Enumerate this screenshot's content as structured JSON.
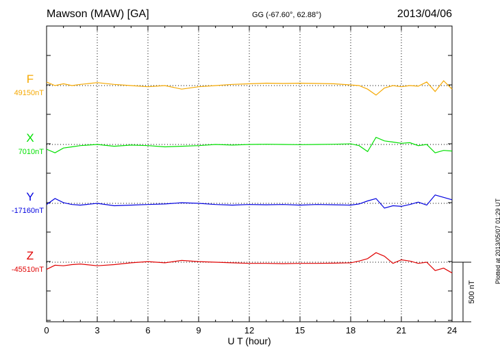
{
  "header": {
    "station": "Mawson (MAW)  [GA]",
    "coordinates": "GG (-67.60°,  62.88°)",
    "date": "2013/04/06"
  },
  "footer": {
    "plotted": "Plotted at 2013/05/07 01:29 UT"
  },
  "chart_data": {
    "type": "line",
    "xlabel": "U T (hour)",
    "xlim": [
      0,
      24
    ],
    "xticks": [
      "0",
      "3",
      "6",
      "9",
      "12",
      "15",
      "18",
      "21",
      "24"
    ],
    "scale_bar_label": "500 nT",
    "scale_bar_nT": 500,
    "series": [
      {
        "name": "F",
        "baseline_label": "49150nT",
        "color": "#f5a800",
        "baseline": 49150,
        "x": [
          0,
          0.5,
          1,
          1.5,
          2,
          3,
          4,
          5,
          6,
          7,
          8,
          9,
          10,
          11,
          12,
          13,
          14,
          15,
          16,
          17,
          18,
          18.5,
          19,
          19.5,
          20,
          20.5,
          21,
          21.5,
          22,
          22.5,
          23,
          23.5,
          24
        ],
        "values": [
          49180,
          49150,
          49165,
          49150,
          49160,
          49175,
          49160,
          49150,
          49140,
          49150,
          49120,
          49140,
          49150,
          49160,
          49165,
          49170,
          49168,
          49170,
          49168,
          49165,
          49155,
          49150,
          49120,
          49070,
          49130,
          49150,
          49140,
          49150,
          49145,
          49180,
          49100,
          49190,
          49120
        ]
      },
      {
        "name": "X",
        "baseline_label": "7010nT",
        "color": "#00e000",
        "baseline": 7010,
        "x": [
          0,
          0.5,
          1,
          1.5,
          2,
          3,
          4,
          5,
          6,
          7,
          8,
          9,
          10,
          11,
          12,
          13,
          14,
          15,
          16,
          17,
          18,
          18.5,
          19,
          19.5,
          20,
          20.5,
          21,
          21.5,
          22,
          22.5,
          23,
          23.5,
          24
        ],
        "values": [
          6970,
          6940,
          6980,
          6990,
          7000,
          7010,
          6995,
          7005,
          7000,
          6990,
          6995,
          7000,
          7010,
          7005,
          7010,
          7012,
          7010,
          7008,
          7010,
          7012,
          7015,
          7000,
          6950,
          7070,
          7040,
          7030,
          7020,
          7025,
          7000,
          7010,
          6940,
          6960,
          6955
        ]
      },
      {
        "name": "Y",
        "baseline_label": "-17160nT",
        "color": "#0000e0",
        "baseline": -17160,
        "x": [
          0,
          0.5,
          1,
          1.5,
          2,
          3,
          4,
          5,
          6,
          7,
          8,
          9,
          10,
          11,
          12,
          13,
          14,
          15,
          16,
          17,
          18,
          18.5,
          19,
          19.5,
          20,
          20.5,
          21,
          21.5,
          22,
          22.5,
          23,
          23.5,
          24
        ],
        "values": [
          -17170,
          -17120,
          -17155,
          -17170,
          -17175,
          -17160,
          -17180,
          -17175,
          -17170,
          -17165,
          -17155,
          -17160,
          -17170,
          -17175,
          -17170,
          -17172,
          -17170,
          -17175,
          -17170,
          -17172,
          -17175,
          -17165,
          -17140,
          -17120,
          -17200,
          -17180,
          -17185,
          -17170,
          -17150,
          -17175,
          -17090,
          -17110,
          -17130
        ]
      },
      {
        "name": "Z",
        "baseline_label": "-45510nT",
        "color": "#e00000",
        "baseline": -45510,
        "x": [
          0,
          0.5,
          1,
          1.5,
          2,
          3,
          4,
          5,
          6,
          7,
          8,
          9,
          10,
          11,
          12,
          13,
          14,
          15,
          16,
          17,
          18,
          18.5,
          19,
          19.5,
          20,
          20.5,
          21,
          21.5,
          22,
          22.5,
          23,
          23.5,
          24
        ],
        "values": [
          -45570,
          -45535,
          -45540,
          -45530,
          -45525,
          -45540,
          -45530,
          -45515,
          -45505,
          -45515,
          -45495,
          -45505,
          -45510,
          -45515,
          -45520,
          -45520,
          -45522,
          -45520,
          -45520,
          -45518,
          -45515,
          -45500,
          -45480,
          -45430,
          -45460,
          -45520,
          -45490,
          -45500,
          -45520,
          -45510,
          -45580,
          -45560,
          -45600
        ]
      }
    ]
  }
}
